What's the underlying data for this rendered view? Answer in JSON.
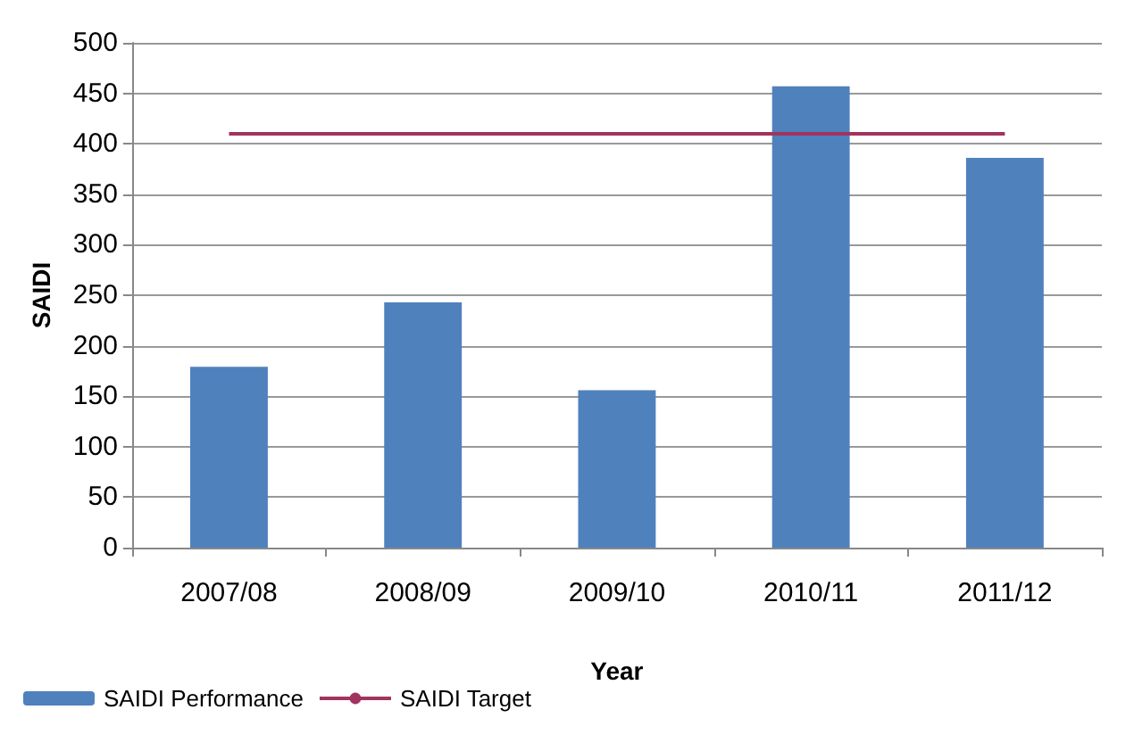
{
  "chart_data": {
    "type": "bar",
    "xlabel": "Year",
    "ylabel": "SAIDI",
    "categories": [
      "2007/08",
      "2008/09",
      "2009/10",
      "2010/11",
      "2011/12"
    ],
    "series": [
      {
        "name": "SAIDI Performance",
        "color": "#4f81bd",
        "values": [
          179,
          243,
          156,
          457,
          386
        ]
      },
      {
        "name": "SAIDI Target",
        "type": "line",
        "color": "#a0345f",
        "values": [
          410,
          410,
          410,
          410,
          410
        ]
      }
    ],
    "ylim": [
      0,
      500
    ],
    "yticks": [
      0,
      50,
      100,
      150,
      200,
      250,
      300,
      350,
      400,
      450,
      500
    ],
    "grid": "y",
    "legend": "bottom left",
    "marker": "none"
  }
}
